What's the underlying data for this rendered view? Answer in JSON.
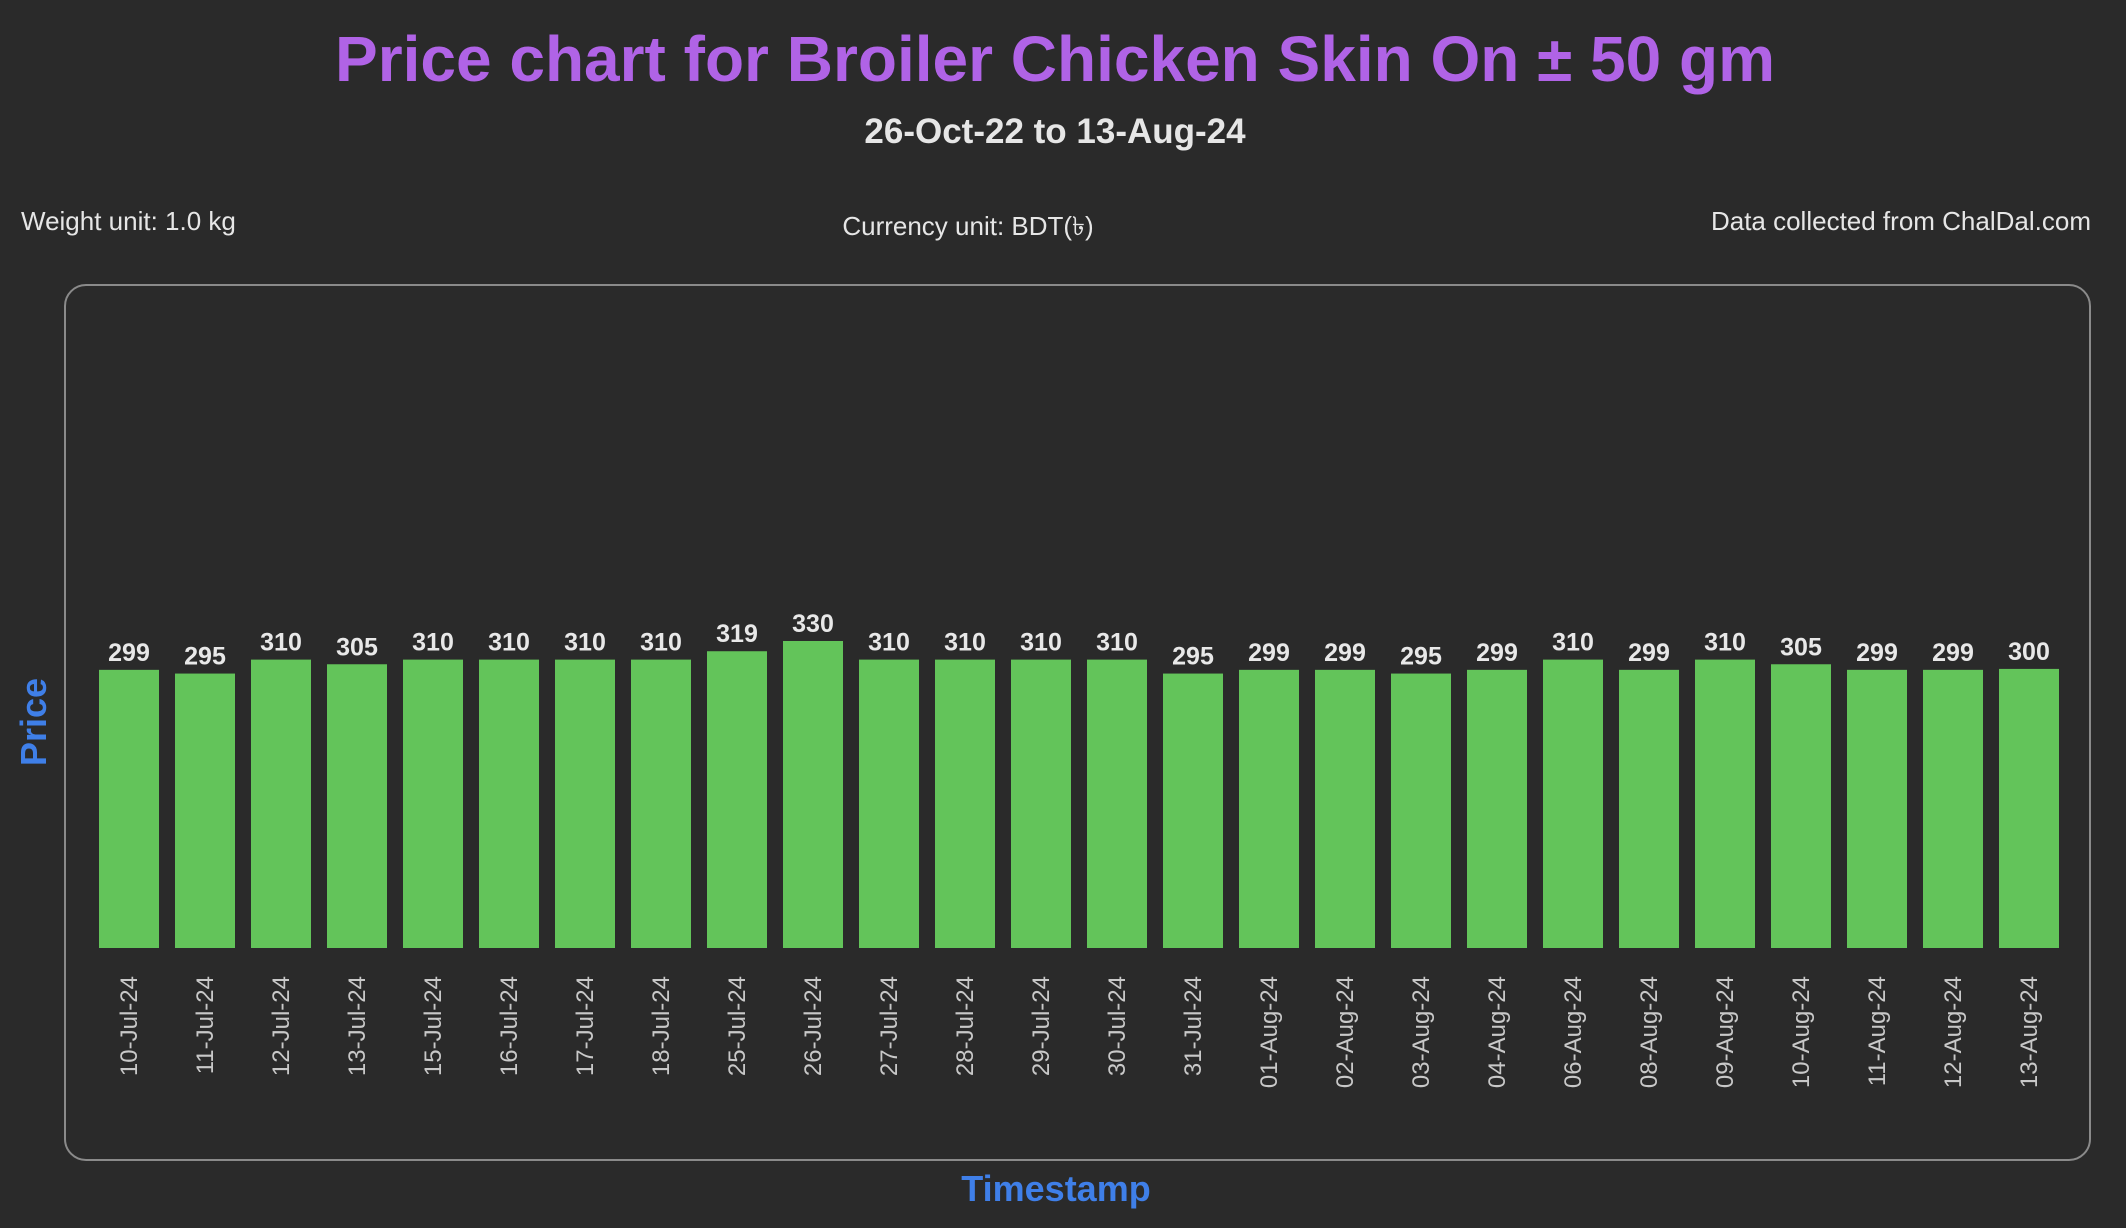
{
  "header": {
    "title": "Price chart for Broiler Chicken Skin On ± 50 gm",
    "subtitle": "26-Oct-22 to 13-Aug-24"
  },
  "meta": {
    "weight_unit": "Weight unit: 1.0 kg",
    "currency_unit": "Currency unit: BDT(৳)",
    "source": "Data collected from ChalDal.com"
  },
  "colors": {
    "bar": "#63c45a",
    "title": "#b063e6",
    "axis_label": "#3f7fe8",
    "background": "#2a2a2a"
  },
  "chart_data": {
    "type": "bar",
    "title": "Price chart for Broiler Chicken Skin On ± 50 gm",
    "subtitle": "26-Oct-22 to 13-Aug-24",
    "xlabel": "Timestamp",
    "ylabel": "Price",
    "grid": false,
    "categories": [
      "10-Jul-24",
      "11-Jul-24",
      "12-Jul-24",
      "13-Jul-24",
      "15-Jul-24",
      "16-Jul-24",
      "17-Jul-24",
      "18-Jul-24",
      "25-Jul-24",
      "26-Jul-24",
      "27-Jul-24",
      "28-Jul-24",
      "29-Jul-24",
      "30-Jul-24",
      "31-Jul-24",
      "01-Aug-24",
      "02-Aug-24",
      "03-Aug-24",
      "04-Aug-24",
      "06-Aug-24",
      "08-Aug-24",
      "09-Aug-24",
      "10-Aug-24",
      "11-Aug-24",
      "12-Aug-24",
      "13-Aug-24"
    ],
    "values": [
      299,
      295,
      310,
      305,
      310,
      310,
      310,
      310,
      319,
      330,
      310,
      310,
      310,
      310,
      295,
      299,
      299,
      295,
      299,
      310,
      299,
      310,
      305,
      299,
      299,
      300
    ]
  }
}
